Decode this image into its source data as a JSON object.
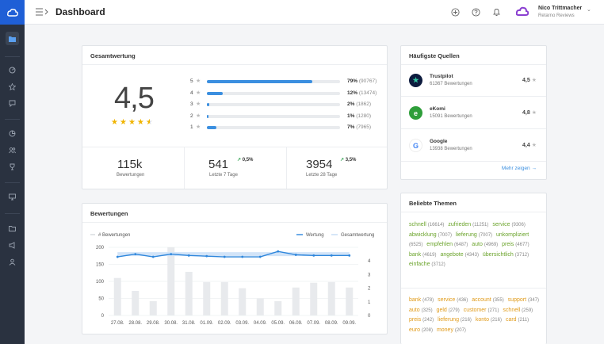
{
  "header": {
    "title": "Dashboard",
    "user_name": "Nico Trittmacher",
    "user_company": "Retarno Reviews"
  },
  "sidebar": {
    "items": [
      "folder-icon",
      "dashboard-icon",
      "star-icon",
      "comment-icon",
      "pie-chart-icon",
      "users-icon",
      "trophy-icon",
      "monitor-icon",
      "folder-outline-icon",
      "megaphone-icon",
      "user-icon"
    ]
  },
  "gesamt": {
    "title": "Gesamtwertung",
    "rating": "4,5",
    "stars": 4.5,
    "distribution": [
      {
        "stars": "5",
        "pct": "79%",
        "count": "(90767)",
        "fill": 0.79
      },
      {
        "stars": "4",
        "pct": "12%",
        "count": "(13474)",
        "fill": 0.12
      },
      {
        "stars": "3",
        "pct": "2%",
        "count": "(1862)",
        "fill": 0.02
      },
      {
        "stars": "2",
        "pct": "1%",
        "count": "(1280)",
        "fill": 0.01
      },
      {
        "stars": "1",
        "pct": "7%",
        "count": "(7965)",
        "fill": 0.07
      }
    ],
    "stats": [
      {
        "value": "115k",
        "label": "Bewertungen",
        "delta": ""
      },
      {
        "value": "541",
        "label": "Letzte 7 Tage",
        "delta": "0,5%"
      },
      {
        "value": "3954",
        "label": "Letzte 28 Tage",
        "delta": "3,5%"
      }
    ]
  },
  "quellen": {
    "title": "Häufigste Quellen",
    "items": [
      {
        "name": "Trustpilot",
        "count": "61367 Bewertungen",
        "rating": "4,5",
        "icon": "trustpilot-icon",
        "color": "#0d1b3e",
        "glyph": "★"
      },
      {
        "name": "eKomi",
        "count": "15091 Bewertungen",
        "rating": "4,8",
        "icon": "ekomi-icon",
        "color": "#2e9e3a",
        "glyph": "e"
      },
      {
        "name": "Google",
        "count": "13938 Bewertungen",
        "rating": "4,4",
        "icon": "google-icon",
        "color": "#ffffff",
        "glyph": "G"
      }
    ],
    "more": "Mehr zeigen"
  },
  "themen": {
    "title": "Beliebte Themen",
    "positive": [
      {
        "word": "schnell",
        "count": "(16614)"
      },
      {
        "word": "zufrieden",
        "count": "(11251)"
      },
      {
        "word": "service",
        "count": "(9306)"
      },
      {
        "word": "abwicklung",
        "count": "(7007)"
      },
      {
        "word": "lieferung",
        "count": "(7007)"
      },
      {
        "word": "unkompliziert",
        "count": "(6525)"
      },
      {
        "word": "empfehlen",
        "count": "(6487)"
      },
      {
        "word": "auto",
        "count": "(4969)"
      },
      {
        "word": "preis",
        "count": "(4677)"
      },
      {
        "word": "bank",
        "count": "(4619)"
      },
      {
        "word": "angebote",
        "count": "(4343)"
      },
      {
        "word": "übersichtlich",
        "count": "(3712)"
      },
      {
        "word": "einfache",
        "count": "(3712)"
      }
    ],
    "negative": [
      {
        "word": "bank",
        "count": "(478)"
      },
      {
        "word": "service",
        "count": "(436)"
      },
      {
        "word": "account",
        "count": "(355)"
      },
      {
        "word": "support",
        "count": "(347)"
      },
      {
        "word": "auto",
        "count": "(325)"
      },
      {
        "word": "geld",
        "count": "(279)"
      },
      {
        "word": "customer",
        "count": "(271)"
      },
      {
        "word": "schnell",
        "count": "(259)"
      },
      {
        "word": "preis",
        "count": "(242)"
      },
      {
        "word": "lieferung",
        "count": "(216)"
      },
      {
        "word": "konto",
        "count": "(216)"
      },
      {
        "word": "card",
        "count": "(211)"
      },
      {
        "word": "euro",
        "count": "(208)"
      },
      {
        "word": "money",
        "count": "(207)"
      }
    ]
  },
  "bewertungen": {
    "title": "Bewertungen",
    "legend_count": "# Bewertungen",
    "legend_rating": "Wertung",
    "legend_total": "Gesamtwertung"
  },
  "chart_data": {
    "type": "bar",
    "categories": [
      "27.08.",
      "28.08.",
      "29.08.",
      "30.08.",
      "31.08.",
      "01.09.",
      "02.09.",
      "03.09.",
      "04.09.",
      "05.09.",
      "06.09.",
      "07.09.",
      "08.09.",
      "09.09."
    ],
    "series": [
      {
        "name": "# Bewertungen",
        "type": "bar",
        "axis": "left",
        "values": [
          110,
          72,
          42,
          200,
          128,
          98,
          98,
          80,
          50,
          42,
          82,
          96,
          98,
          82
        ]
      },
      {
        "name": "Wertung",
        "type": "line",
        "axis": "right",
        "values": [
          4.3,
          4.5,
          4.3,
          4.5,
          4.4,
          4.35,
          4.3,
          4.3,
          4.3,
          4.7,
          4.45,
          4.4,
          4.4,
          4.4
        ]
      },
      {
        "name": "Gesamtwertung",
        "type": "line",
        "axis": "right",
        "values": [
          4.5,
          4.5,
          4.5,
          4.5,
          4.5,
          4.5,
          4.5,
          4.5,
          4.5,
          4.5,
          4.5,
          4.5,
          4.5,
          4.5
        ]
      }
    ],
    "ylim_left": [
      0,
      200
    ],
    "yticks_left": [
      "0",
      "50",
      "100",
      "150",
      "200"
    ],
    "ylim_right": [
      0,
      5
    ],
    "yticks_right": [
      "0",
      "1",
      "2",
      "3",
      "4"
    ],
    "grid": true,
    "legend": "top"
  },
  "colors": {
    "accent": "#3b8fe0",
    "star": "#f0b400",
    "positive": "#6aa32a",
    "negative": "#e09a18",
    "sidebar": "#2a3240",
    "brand": "#8a3fd1"
  }
}
